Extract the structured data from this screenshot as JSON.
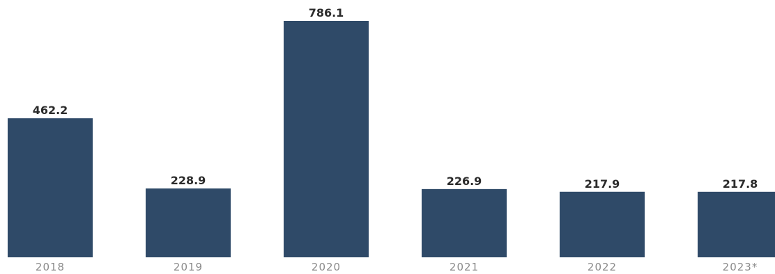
{
  "chart_data": {
    "type": "bar",
    "title": "",
    "xlabel": "",
    "ylabel": "",
    "categories": [
      "2018",
      "2019",
      "2020",
      "2021",
      "2022",
      "2023*"
    ],
    "values": [
      462.2,
      228.9,
      786.1,
      226.9,
      217.9,
      217.8
    ],
    "value_labels": [
      "462.2",
      "228.9",
      "786.1",
      "226.9",
      "217.9",
      "217.8"
    ],
    "grid": false,
    "legend": "none",
    "colors": {
      "bar": "#2f4a68"
    }
  }
}
